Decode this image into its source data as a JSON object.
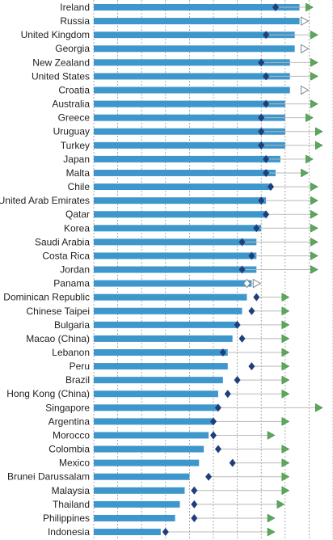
{
  "chart_data": {
    "type": "bar",
    "categories": [
      "Ireland",
      "Russia",
      "United Kingdom",
      "Georgia",
      "New Zealand",
      "United States",
      "Croatia",
      "Australia",
      "Greece",
      "Uruguay",
      "Turkey",
      "Japan",
      "Malta",
      "Chile",
      "United Arab Emirates",
      "Qatar",
      "Korea",
      "Saudi Arabia",
      "Costa Rica",
      "Jordan",
      "Panama",
      "Dominican Republic",
      "Chinese Taipei",
      "Bulgaria",
      "Macao (China)",
      "Lebanon",
      "Peru",
      "Brazil",
      "Hong Kong (China)",
      "Singapore",
      "Argentina",
      "Morocco",
      "Colombia",
      "Mexico",
      "Brunei Darussalam",
      "Malaysia",
      "Thailand",
      "Philippines",
      "Indonesia"
    ],
    "series": [
      {
        "marker": "bar",
        "color": "#3d97cc",
        "values": [
          93,
          93,
          92,
          92,
          91,
          91,
          91,
          90,
          90,
          90,
          90,
          89,
          88,
          87,
          86,
          86,
          85,
          84,
          84,
          84,
          83,
          82,
          81,
          80,
          79,
          78,
          78,
          77,
          76,
          76,
          75,
          74,
          73,
          72,
          70,
          69,
          68,
          67,
          64
        ]
      },
      {
        "marker": "diamond",
        "color": "#1e3f7a",
        "values": [
          88,
          null,
          86,
          null,
          85,
          86,
          null,
          86,
          85,
          85,
          85,
          86,
          86,
          87,
          85,
          86,
          84,
          81,
          83,
          81,
          null,
          84,
          83,
          80,
          81,
          77,
          83,
          80,
          78,
          76,
          75,
          75,
          76,
          79,
          74,
          71,
          71,
          71,
          65
        ]
      },
      {
        "marker": "triangle",
        "color": "#5aa85a",
        "values": [
          95,
          null,
          96,
          null,
          96,
          96,
          null,
          96,
          95,
          97,
          97,
          95,
          94,
          96,
          96,
          96,
          96,
          96,
          96,
          96,
          null,
          90,
          90,
          90,
          90,
          90,
          90,
          90,
          90,
          97,
          90,
          87,
          90,
          90,
          90,
          90,
          89,
          87,
          87
        ]
      },
      {
        "marker": "open-diamond",
        "color": "#cfd9e2",
        "values": [
          null,
          null,
          null,
          null,
          null,
          null,
          null,
          null,
          null,
          null,
          null,
          null,
          null,
          null,
          null,
          null,
          null,
          null,
          null,
          null,
          82,
          null,
          null,
          null,
          null,
          null,
          null,
          null,
          null,
          null,
          null,
          null,
          null,
          null,
          null,
          null,
          null,
          null,
          null
        ]
      },
      {
        "marker": "open-triangle",
        "color": "#cfd9e2",
        "values": [
          null,
          94,
          null,
          94,
          null,
          null,
          94,
          null,
          null,
          null,
          null,
          null,
          null,
          null,
          null,
          null,
          null,
          null,
          null,
          null,
          84,
          null,
          null,
          null,
          null,
          null,
          null,
          null,
          null,
          null,
          null,
          null,
          null,
          null,
          null,
          null,
          null,
          null,
          null
        ]
      }
    ],
    "xlim": [
      50,
      100
    ],
    "grid": true
  }
}
